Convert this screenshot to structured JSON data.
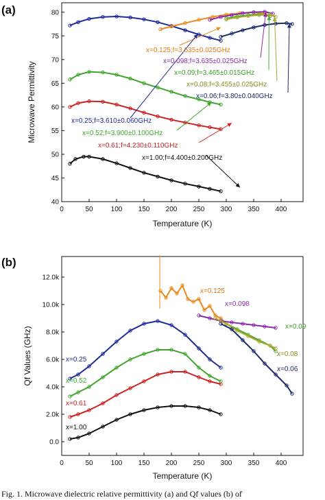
{
  "caption": "Fig. 1. Microwave dielectric relative permittivity (a) and Qf values (b) of",
  "chart_data": [
    {
      "type": "line",
      "panel": "(a)",
      "xlabel": "Temperature (K)",
      "ylabel": "Microwave Permittivity",
      "xlim": [
        0,
        440
      ],
      "ylim": [
        40,
        82
      ],
      "xticks": [
        0,
        50,
        100,
        150,
        200,
        250,
        300,
        350,
        400
      ],
      "yticks": [
        40,
        45,
        50,
        55,
        60,
        65,
        70,
        75,
        80
      ],
      "grid": false,
      "series": [
        {
          "name": "x=0.25;f=3.610±0.060GHz",
          "color": "#1f2a99",
          "x": [
            15,
            30,
            50,
            75,
            100,
            125,
            150,
            175,
            200,
            225,
            250,
            270,
            290
          ],
          "y": [
            77.2,
            77.9,
            78.6,
            79.0,
            79.1,
            78.9,
            78.5,
            77.9,
            77.1,
            76.2,
            75.3,
            74.6,
            74.0
          ]
        },
        {
          "name": "x=0.52;f=3.900±0.100GHz",
          "color": "#3fa62a",
          "x": [
            15,
            30,
            50,
            75,
            100,
            125,
            150,
            175,
            200,
            225,
            250,
            270,
            290
          ],
          "y": [
            65.8,
            66.8,
            67.4,
            67.3,
            66.8,
            66.0,
            65.0,
            64.1,
            63.2,
            62.3,
            61.6,
            61.0,
            60.5
          ]
        },
        {
          "name": "x=0.61;f=4.230±0.110GHz",
          "color": "#cc2222",
          "x": [
            15,
            30,
            50,
            75,
            100,
            125,
            150,
            175,
            200,
            225,
            250,
            270,
            290
          ],
          "y": [
            60.0,
            60.8,
            61.2,
            61.1,
            60.5,
            59.7,
            58.8,
            58.0,
            57.3,
            56.7,
            56.1,
            55.7,
            55.3
          ]
        },
        {
          "name": "x=1.00;f=4.400±0.200GHz",
          "color": "#111111",
          "x": [
            15,
            25,
            40,
            50,
            75,
            100,
            125,
            150,
            175,
            200,
            225,
            250,
            270,
            290
          ],
          "y": [
            48.0,
            49.0,
            49.5,
            49.5,
            49.0,
            48.1,
            47.1,
            46.1,
            45.3,
            44.5,
            43.8,
            43.2,
            42.7,
            42.2
          ]
        },
        {
          "name": "x=0.125;f=3.535±0.025GHz",
          "color": "#e88a1e",
          "x": [
            180,
            200,
            225,
            250,
            275,
            300,
            325,
            350,
            375
          ],
          "y": [
            76.4,
            77.0,
            77.7,
            78.4,
            79.0,
            79.5,
            79.8,
            80.0,
            79.6
          ]
        },
        {
          "name": "x=0.098;f=3.635±0.025GHz",
          "color": "#8a2aa8",
          "x": [
            270,
            290,
            310,
            330,
            350,
            370,
            385
          ],
          "y": [
            78.4,
            79.0,
            79.4,
            79.8,
            80.0,
            80.1,
            79.7
          ]
        },
        {
          "name": "x=0.09;f=3.465±0.015GHz",
          "color": "#4ca836",
          "x": [
            300,
            320,
            340,
            360,
            380
          ],
          "y": [
            78.7,
            79.1,
            79.4,
            79.6,
            79.2
          ]
        },
        {
          "name": "x=0.08;f=3.455±0.025GHz",
          "color": "#a8a82a",
          "x": [
            300,
            320,
            340,
            360,
            380,
            390
          ],
          "y": [
            78.5,
            78.9,
            79.2,
            79.4,
            79.5,
            79.0
          ]
        },
        {
          "name": "x=0.06;f=3.80±0.040GHz",
          "color": "#1a2a6b",
          "x": [
            290,
            310,
            330,
            350,
            370,
            390,
            410,
            420
          ],
          "y": [
            74.8,
            75.5,
            76.2,
            76.8,
            77.3,
            77.6,
            77.7,
            77.5
          ]
        }
      ],
      "annotations": [
        {
          "text": "x=0.125;f=3.535±0.025GHz",
          "color": "#e07a10"
        },
        {
          "text": "x=0.098;f=3.635±0.025GHz",
          "color": "#8a2aa8"
        },
        {
          "text": "x=0.09;f=3.465±0.015GHz",
          "color": "#3a9a2a"
        },
        {
          "text": "x=0.08;f=3.455±0.025GHz",
          "color": "#8c8c1a"
        },
        {
          "text": "x=0.06;f=3.80±0.040GHz",
          "color": "#1a2a6b"
        },
        {
          "text": "x=0.25;f=3.610±0.060GHz",
          "color": "#1f2a99"
        },
        {
          "text": "x=0.52;f=3.900±0.100GHz",
          "color": "#3fa62a"
        },
        {
          "text": "x=0.61;f=4.230±0.110GHz",
          "color": "#cc2222"
        },
        {
          "text": "x=1.00;f=4.400±0.200GHz",
          "color": "#111111"
        }
      ]
    },
    {
      "type": "line",
      "panel": "(b)",
      "xlabel": "Temperature (K)",
      "ylabel": "Qf Values (GHz)",
      "xlim": [
        0,
        440
      ],
      "ylim": [
        -1000,
        13500
      ],
      "xticks": [
        0,
        50,
        100,
        150,
        200,
        250,
        300,
        350,
        400
      ],
      "yticks": [
        0,
        2000,
        4000,
        6000,
        8000,
        10000,
        12000
      ],
      "ytick_labels": [
        "0.0",
        "2.0k",
        "4.0k",
        "6.0k",
        "8.0k",
        "10.0k",
        "12.0k"
      ],
      "grid": false,
      "series": [
        {
          "name": "x=0.25",
          "color": "#1f2a99",
          "x": [
            15,
            30,
            50,
            75,
            100,
            125,
            150,
            175,
            200,
            225,
            250,
            270,
            290
          ],
          "y": [
            4600,
            4900,
            5500,
            6400,
            7300,
            8100,
            8600,
            8800,
            8500,
            7800,
            6800,
            6000,
            5400
          ]
        },
        {
          "name": "x=0.52",
          "color": "#3fa62a",
          "x": [
            15,
            30,
            50,
            75,
            100,
            125,
            150,
            175,
            200,
            225,
            250,
            270,
            290
          ],
          "y": [
            3300,
            3600,
            4000,
            4700,
            5400,
            6000,
            6400,
            6700,
            6700,
            6400,
            5400,
            4800,
            4400
          ]
        },
        {
          "name": "x=0.61",
          "color": "#cc2222",
          "x": [
            15,
            30,
            50,
            75,
            100,
            125,
            150,
            175,
            200,
            225,
            250,
            270,
            290
          ],
          "y": [
            1800,
            2000,
            2300,
            2800,
            3400,
            3900,
            4400,
            4900,
            5100,
            5100,
            4700,
            4400,
            4200
          ]
        },
        {
          "name": "x=1.00",
          "color": "#111111",
          "x": [
            15,
            30,
            50,
            75,
            100,
            125,
            150,
            175,
            200,
            225,
            250,
            270,
            290
          ],
          "y": [
            200,
            300,
            600,
            1100,
            1600,
            2000,
            2300,
            2500,
            2600,
            2600,
            2500,
            2300,
            2000
          ]
        },
        {
          "name": "x=0.125",
          "color": "#e88a1e",
          "x": [
            180,
            190,
            200,
            210,
            220,
            230,
            240,
            250,
            260,
            270,
            280,
            290,
            300
          ],
          "y": [
            11000,
            10500,
            11200,
            10800,
            11400,
            10400,
            10200,
            10400,
            9600,
            9900,
            9200,
            9000,
            8600
          ]
        },
        {
          "name": "x=0.098",
          "color": "#8a2aa8",
          "x": [
            250,
            270,
            290,
            310,
            330,
            350,
            370,
            390
          ],
          "y": [
            9200,
            9000,
            8800,
            8700,
            8600,
            8500,
            8400,
            8300
          ]
        },
        {
          "name": "x=0.09",
          "color": "#4ca836",
          "x": [
            300,
            320,
            340,
            360,
            380,
            390
          ],
          "y": [
            8600,
            8200,
            7800,
            7400,
            7000,
            6600
          ]
        },
        {
          "name": "x=0.08",
          "color": "#a8a82a",
          "x": [
            280,
            300,
            320,
            340,
            360,
            380,
            390
          ],
          "y": [
            9000,
            8600,
            8100,
            7700,
            7300,
            7000,
            6800
          ]
        },
        {
          "name": "x=0.06",
          "color": "#1a2a6b",
          "x": [
            290,
            310,
            330,
            350,
            370,
            390,
            410,
            420
          ],
          "y": [
            8600,
            8200,
            7400,
            6600,
            5700,
            4900,
            4100,
            3500
          ]
        }
      ],
      "annotations": [
        {
          "text": "x=0.125",
          "color": "#e07a10"
        },
        {
          "text": "x=0.098",
          "color": "#8a2aa8"
        },
        {
          "text": "x=0.09",
          "color": "#3a9a2a"
        },
        {
          "text": "x=0.08",
          "color": "#8c8c1a"
        },
        {
          "text": "x=0.06",
          "color": "#1a2a6b"
        },
        {
          "text": "x=0.25",
          "color": "#1f2a99"
        },
        {
          "text": "x=0.52",
          "color": "#3fa62a"
        },
        {
          "text": "x=0.61",
          "color": "#cc2222"
        },
        {
          "text": "x=1.00",
          "color": "#111111"
        }
      ]
    }
  ]
}
